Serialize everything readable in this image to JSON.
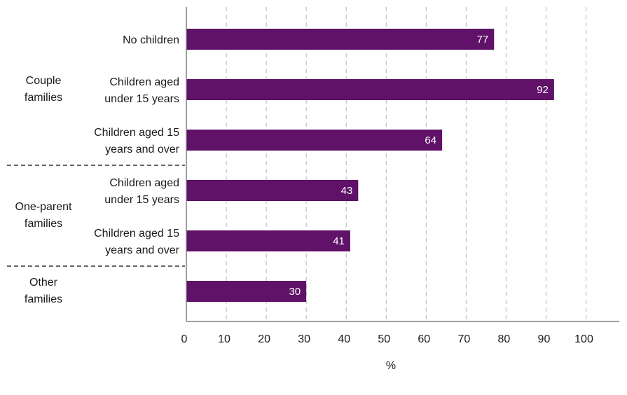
{
  "colors": {
    "bar": "#5f1268",
    "grid": "#b3b3b3",
    "axis": "#808080",
    "separator": "#333333"
  },
  "chart_data": {
    "type": "bar",
    "orientation": "horizontal",
    "xlabel": "%",
    "xlim": [
      0,
      100
    ],
    "xticks": [
      "0",
      "10",
      "20",
      "30",
      "40",
      "50",
      "60",
      "70",
      "80",
      "90",
      "100"
    ],
    "grid": "vertical dashed",
    "bars": [
      {
        "label": [
          "No children"
        ],
        "value": 77,
        "value_label": "77"
      },
      {
        "label": [
          "Children aged",
          "under 15 years"
        ],
        "value": 92,
        "value_label": "92"
      },
      {
        "label": [
          "Children aged 15",
          "years and over"
        ],
        "value": 64,
        "value_label": "64"
      },
      {
        "label": [
          "Children aged",
          "under 15 years"
        ],
        "value": 43,
        "value_label": "43"
      },
      {
        "label": [
          "Children aged 15",
          "years and over"
        ],
        "value": 41,
        "value_label": "41"
      },
      {
        "label": [],
        "value": 30,
        "value_label": "30"
      }
    ],
    "groups": [
      {
        "label": [
          "Couple",
          "families"
        ],
        "bars": [
          0,
          1,
          2
        ]
      },
      {
        "label": [
          "One-parent",
          "families"
        ],
        "bars": [
          3,
          4
        ]
      },
      {
        "label": [
          "Other",
          "families"
        ],
        "bars": [
          5
        ]
      }
    ]
  }
}
